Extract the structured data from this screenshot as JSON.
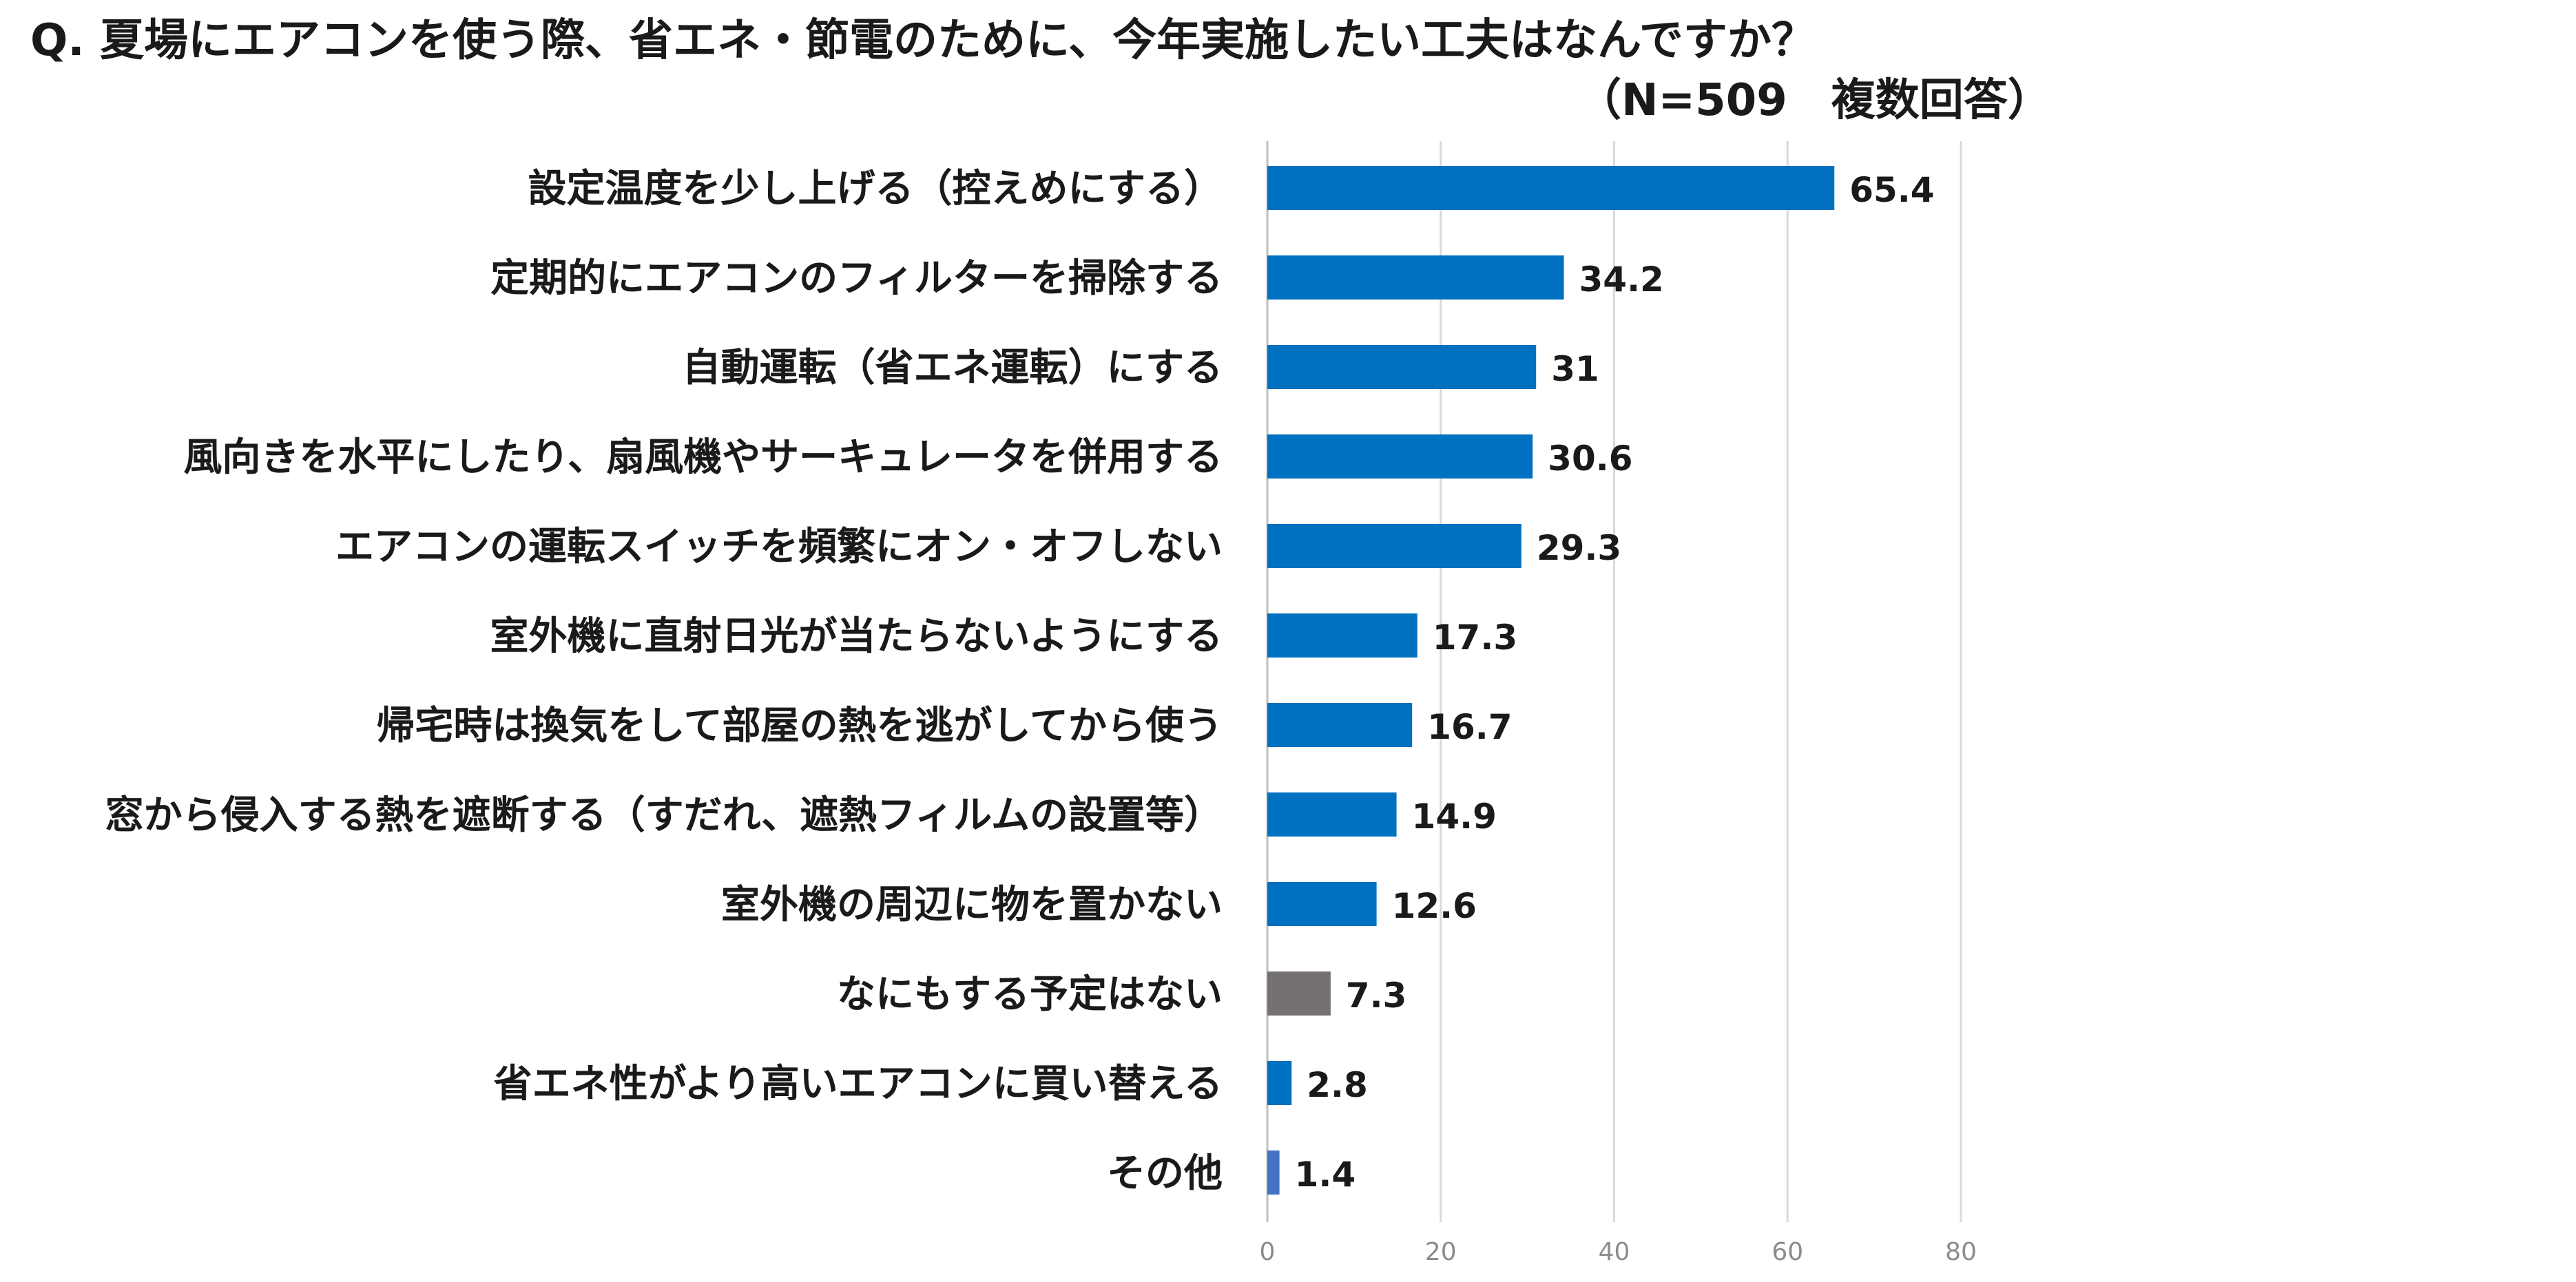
{
  "chart_data": {
    "type": "bar",
    "orientation": "horizontal",
    "title": "Q.  夏場にエアコンを使う際、省エネ・節電のために、今年実施したい工夫はなんですか？",
    "subtitle": "（N=509　複数回答）",
    "xlabel": "",
    "ylabel": "",
    "xlim": [
      0,
      80
    ],
    "xticks": [
      0,
      20,
      40,
      60,
      80
    ],
    "grid": true,
    "categories": [
      "設定温度を少し上げる（控えめにする）",
      "定期的にエアコンのフィルターを掃除する",
      "自動運転（省エネ運転）にする",
      "風向きを水平にしたり、扇風機やサーキュレータを併用する",
      "エアコンの運転スイッチを頻繁にオン・オフしない",
      "室外機に直射日光が当たらないようにする",
      "帰宅時は換気をして部屋の熱を逃がしてから使う",
      "窓から侵入する熱を遮断する（すだれ、遮熱フィルムの設置等）",
      "室外機の周辺に物を置かない",
      "なにもする予定はない",
      "省エネ性がより高いエアコンに買い替える",
      "その他"
    ],
    "values": [
      65.4,
      34.2,
      31,
      30.6,
      29.3,
      17.3,
      16.7,
      14.9,
      12.6,
      7.3,
      2.8,
      1.4
    ],
    "value_labels": [
      "65.4",
      "34.2",
      "31",
      "30.6",
      "29.3",
      "17.3",
      "16.7",
      "14.9",
      "12.6",
      "7.3",
      "2.8",
      "1.4"
    ],
    "colors": [
      "#0070C0",
      "#0070C0",
      "#0070C0",
      "#0070C0",
      "#0070C0",
      "#0070C0",
      "#0070C0",
      "#0070C0",
      "#0070C0",
      "#767171",
      "#0070C0",
      "#4472C4"
    ]
  },
  "styles": {
    "grid_color": "#d9d9d9",
    "axis_color": "#bfbfbf",
    "text_color": "#1a1a1a",
    "tick_color": "#8c8c8c"
  }
}
